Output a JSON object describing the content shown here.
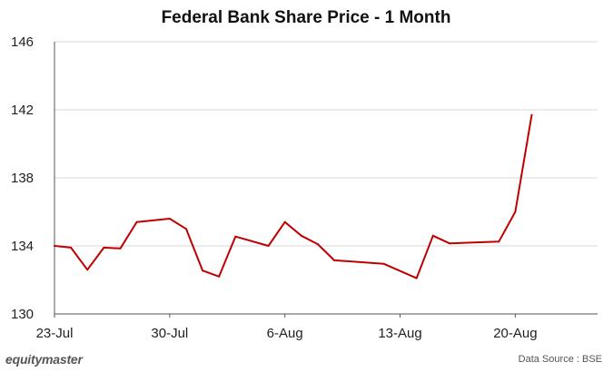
{
  "chart_data": {
    "type": "line",
    "title": "Federal Bank Share Price - 1 Month",
    "xlabel": "",
    "ylabel": "",
    "ylim": [
      130,
      146
    ],
    "yticks": [
      130,
      134,
      138,
      142,
      146
    ],
    "xlim": [
      "2021-07-23",
      "2021-08-25"
    ],
    "xticks": [
      {
        "date": "2021-07-23",
        "label": "23-Jul"
      },
      {
        "date": "2021-07-30",
        "label": "30-Jul"
      },
      {
        "date": "2021-08-06",
        "label": "6-Aug"
      },
      {
        "date": "2021-08-13",
        "label": "13-Aug"
      },
      {
        "date": "2021-08-20",
        "label": "20-Aug"
      }
    ],
    "grid": "horizontal",
    "series": [
      {
        "color": "#c00000",
        "points": [
          {
            "x": "2021-07-23",
            "y": 134.0
          },
          {
            "x": "2021-07-24",
            "y": 133.9
          },
          {
            "x": "2021-07-25",
            "y": 132.6
          },
          {
            "x": "2021-07-26",
            "y": 133.9
          },
          {
            "x": "2021-07-27",
            "y": 133.85
          },
          {
            "x": "2021-07-28",
            "y": 135.4
          },
          {
            "x": "2021-07-30",
            "y": 135.6
          },
          {
            "x": "2021-07-31",
            "y": 135.0
          },
          {
            "x": "2021-08-01",
            "y": 132.55
          },
          {
            "x": "2021-08-02",
            "y": 132.2
          },
          {
            "x": "2021-08-03",
            "y": 134.55
          },
          {
            "x": "2021-08-05",
            "y": 134.0
          },
          {
            "x": "2021-08-06",
            "y": 135.4
          },
          {
            "x": "2021-08-07",
            "y": 134.6
          },
          {
            "x": "2021-08-08",
            "y": 134.1
          },
          {
            "x": "2021-08-09",
            "y": 133.15
          },
          {
            "x": "2021-08-12",
            "y": 132.95
          },
          {
            "x": "2021-08-14",
            "y": 132.1
          },
          {
            "x": "2021-08-15",
            "y": 134.6
          },
          {
            "x": "2021-08-16",
            "y": 134.15
          },
          {
            "x": "2021-08-19",
            "y": 134.25
          },
          {
            "x": "2021-08-20",
            "y": 136.0
          },
          {
            "x": "2021-08-21",
            "y": 141.7
          }
        ]
      }
    ]
  },
  "footer": {
    "brand": "equitymaster",
    "source": "Data Source : BSE"
  }
}
